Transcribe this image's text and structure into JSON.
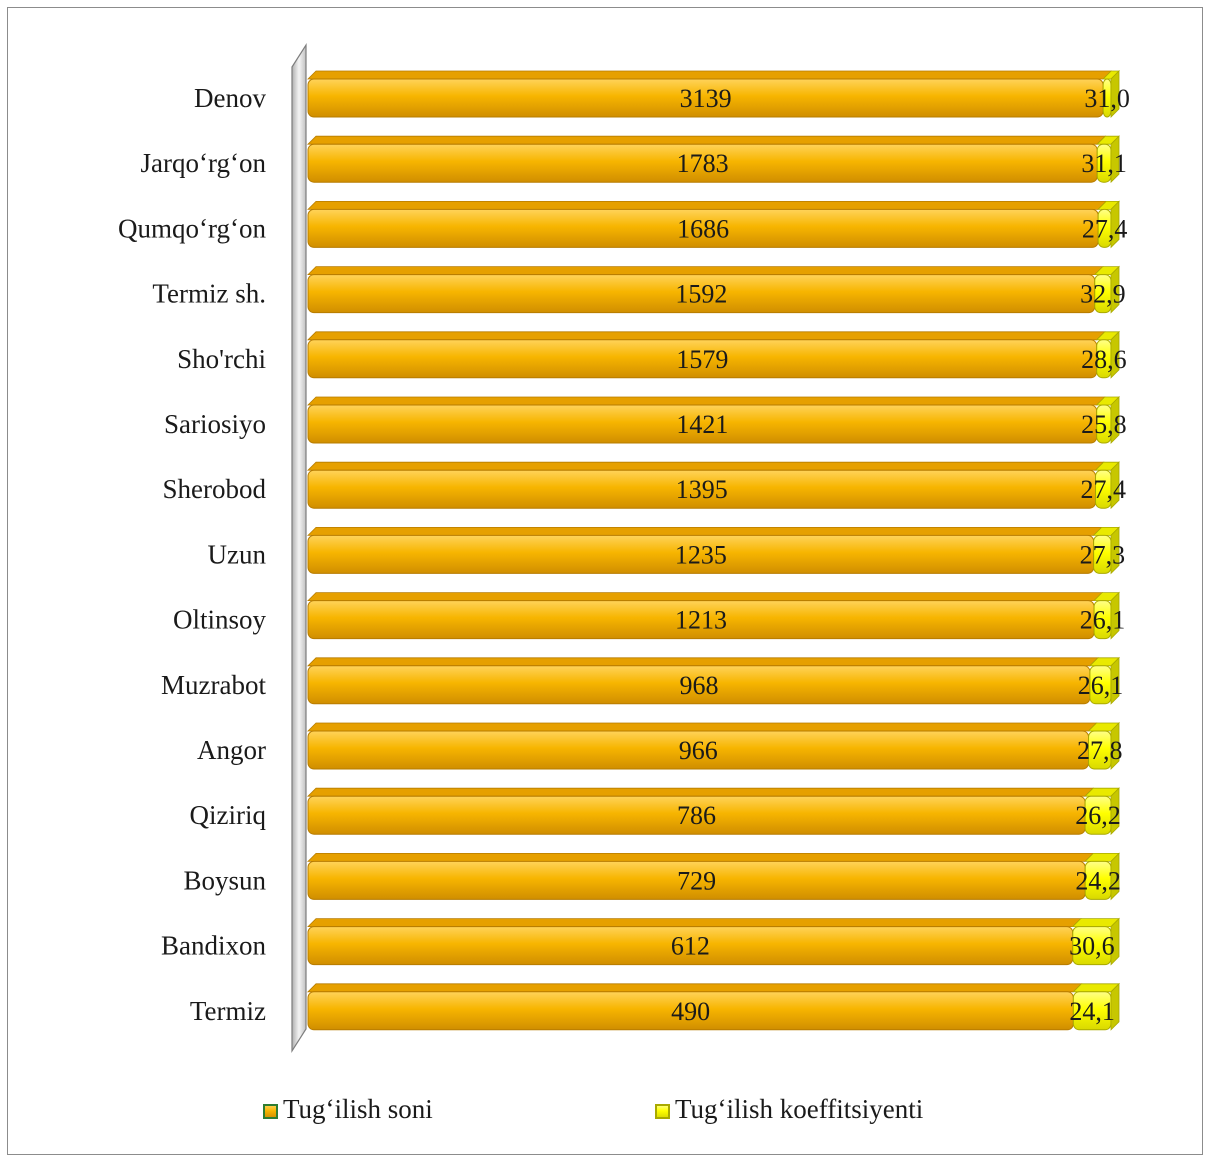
{
  "chart_data": {
    "type": "bar",
    "orientation": "horizontal",
    "stacked": true,
    "categories": [
      "Denov",
      "Jarqo‘rg‘on",
      "Qumqo‘rg‘on",
      "Termiz sh.",
      "Sho'rchi",
      "Sariosiyo",
      "Sherobod",
      "Uzun",
      "Oltinsoy",
      "Muzrabot",
      "Angor",
      "Qiziriq",
      "Boysun",
      "Bandixon",
      "Termiz"
    ],
    "series": [
      {
        "name": "Tug‘ilish soni",
        "color": "#f5b400",
        "values": [
          3139,
          1783,
          1686,
          1592,
          1579,
          1421,
          1395,
          1235,
          1213,
          968,
          966,
          786,
          729,
          612,
          490
        ]
      },
      {
        "name": "Tug‘ilish koeffitsiyenti",
        "color": "#ffff00",
        "values": [
          31.0,
          31.1,
          27.4,
          32.9,
          28.6,
          25.8,
          27.4,
          27.3,
          26.1,
          26.1,
          27.8,
          26.2,
          24.2,
          30.6,
          24.1
        ]
      }
    ],
    "value_labels": [
      [
        "3139",
        "1783",
        "1686",
        "1592",
        "1579",
        "1421",
        "1395",
        "1235",
        "1213",
        "968",
        "966",
        "786",
        "729",
        "612",
        "490"
      ],
      [
        "31,0",
        "31,1",
        "27,4",
        "32,9",
        "28,6",
        "25,8",
        "27,4",
        "27,3",
        "26,1",
        "26,1",
        "27,8",
        "26,2",
        "24,2",
        "30,6",
        "24,1"
      ]
    ],
    "normalized": true,
    "xlabel": "",
    "ylabel": "",
    "grid": false,
    "legend_position": "bottom",
    "style": "3d-cylinder"
  }
}
